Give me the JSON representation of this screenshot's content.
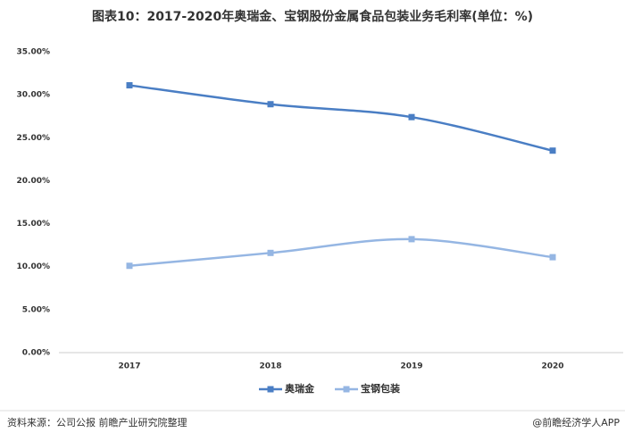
{
  "chart_data": {
    "type": "line",
    "title": "图表10：2017-2020年奥瑞金、宝钢股份金属食品包装业务毛利率(单位：%)",
    "categories": [
      "2017",
      "2018",
      "2019",
      "2020"
    ],
    "series": [
      {
        "name": "奥瑞金",
        "color": "#4a7ec4",
        "values": [
          31.1,
          28.9,
          27.4,
          23.5
        ]
      },
      {
        "name": "宝钢包装",
        "color": "#95b6e3",
        "values": [
          10.1,
          11.6,
          13.2,
          11.1
        ]
      }
    ],
    "ylim": [
      0,
      35
    ],
    "yticks": [
      {
        "value": 0,
        "label": "0.00%"
      },
      {
        "value": 5,
        "label": "5.00%"
      },
      {
        "value": 10,
        "label": "10.00%"
      },
      {
        "value": 15,
        "label": "15.00%"
      },
      {
        "value": 20,
        "label": "20.00%"
      },
      {
        "value": 25,
        "label": "25.00%"
      },
      {
        "value": 30,
        "label": "30.00%"
      },
      {
        "value": 35,
        "label": "35.00%"
      }
    ],
    "grid": false,
    "legend": "bottom",
    "source": "资料来源：公司公报 前瞻产业研究院整理",
    "credit": "@前瞻经济学人APP"
  }
}
